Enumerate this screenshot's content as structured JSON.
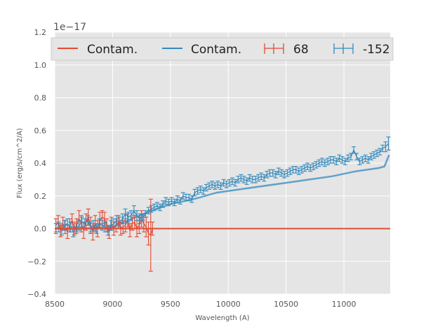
{
  "chart_data": {
    "type": "line",
    "title": "",
    "offset_text": "1e−17",
    "xlabel": "Wavelength (A)",
    "ylabel": "Flux (erg/s/cm^2/A)",
    "xlim": [
      8500,
      11400
    ],
    "ylim": [
      -0.4,
      1.2
    ],
    "xticks": [
      8500,
      9000,
      9500,
      10000,
      10500,
      11000
    ],
    "xtick_labels": [
      "8500",
      "9000",
      "9500",
      "10000",
      "10500",
      "11000"
    ],
    "yticks": [
      -0.4,
      -0.2,
      0.0,
      0.2,
      0.4,
      0.6,
      0.8,
      1.0,
      1.2
    ],
    "ytick_labels": [
      "−0.4",
      "−0.2",
      "0.0",
      "0.2",
      "0.4",
      "0.6",
      "0.8",
      "1.0",
      "1.2"
    ],
    "grid": true,
    "legend_position": "top",
    "legend": [
      {
        "label": "Contam.",
        "kind": "line",
        "color": "#e24a33"
      },
      {
        "label": "Contam.",
        "kind": "line",
        "color": "#348abd"
      },
      {
        "label": "68",
        "kind": "errorbar",
        "color": "#e24a33"
      },
      {
        "label": "-152",
        "kind": "errorbar",
        "color": "#348abd"
      }
    ],
    "series": [
      {
        "name": "Contam.",
        "kind": "line",
        "color": "#e24a33",
        "x": [
          8500,
          9330,
          11400
        ],
        "y": [
          0.0,
          0.0,
          0.0
        ]
      },
      {
        "name": "Contam.",
        "kind": "line",
        "color": "#348abd",
        "x": [
          8500,
          8700,
          9000,
          9300,
          9500,
          9700,
          9900,
          10100,
          10300,
          10500,
          10700,
          10900,
          11100,
          11300,
          11350,
          11390
        ],
        "y": [
          0.0,
          0.0,
          0.01,
          0.1,
          0.15,
          0.18,
          0.22,
          0.24,
          0.26,
          0.28,
          0.3,
          0.32,
          0.35,
          0.37,
          0.38,
          0.45
        ]
      },
      {
        "name": "68",
        "kind": "errorbar",
        "color": "#e24a33",
        "x": [
          8510,
          8530,
          8550,
          8570,
          8590,
          8610,
          8630,
          8650,
          8670,
          8690,
          8710,
          8730,
          8750,
          8770,
          8790,
          8810,
          8830,
          8850,
          8870,
          8890,
          8910,
          8930,
          8950,
          8970,
          8990,
          9010,
          9030,
          9050,
          9070,
          9090,
          9110,
          9130,
          9150,
          9170,
          9190,
          9210,
          9230,
          9250,
          9270,
          9290,
          9310,
          9330,
          9345
        ],
        "y": [
          0.02,
          0.04,
          -0.01,
          0.03,
          0.01,
          -0.02,
          0.02,
          0.05,
          0.0,
          0.02,
          0.06,
          0.03,
          -0.01,
          0.04,
          0.07,
          0.02,
          -0.02,
          0.03,
          0.0,
          0.05,
          0.07,
          0.06,
          0.02,
          -0.02,
          0.03,
          0.0,
          0.02,
          0.04,
          0.0,
          0.01,
          0.02,
          0.05,
          -0.01,
          0.03,
          0.04,
          0.0,
          0.02,
          0.06,
          0.03,
          0.01,
          -0.03,
          -0.04,
          0.0
        ],
        "err": [
          0.04,
          0.04,
          0.04,
          0.04,
          0.04,
          0.04,
          0.04,
          0.04,
          0.04,
          0.04,
          0.05,
          0.05,
          0.05,
          0.05,
          0.05,
          0.05,
          0.05,
          0.05,
          0.05,
          0.05,
          0.04,
          0.04,
          0.04,
          0.04,
          0.04,
          0.04,
          0.04,
          0.04,
          0.04,
          0.04,
          0.04,
          0.04,
          0.04,
          0.04,
          0.04,
          0.05,
          0.05,
          0.05,
          0.05,
          0.06,
          0.07,
          0.22,
          0.04
        ]
      },
      {
        "name": "-152",
        "kind": "errorbar",
        "color": "#348abd",
        "x": [
          8510,
          8535,
          8560,
          8585,
          8610,
          8635,
          8660,
          8685,
          8710,
          8735,
          8760,
          8785,
          8810,
          8835,
          8860,
          8885,
          8910,
          8935,
          8960,
          8985,
          9010,
          9035,
          9060,
          9085,
          9110,
          9135,
          9160,
          9185,
          9210,
          9235,
          9260,
          9285,
          9310,
          9335,
          9360,
          9385,
          9410,
          9435,
          9460,
          9485,
          9510,
          9535,
          9560,
          9585,
          9610,
          9635,
          9660,
          9685,
          9710,
          9735,
          9760,
          9785,
          9810,
          9835,
          9860,
          9885,
          9910,
          9935,
          9960,
          9985,
          10010,
          10035,
          10060,
          10085,
          10110,
          10135,
          10160,
          10185,
          10210,
          10235,
          10260,
          10285,
          10310,
          10335,
          10360,
          10385,
          10410,
          10435,
          10460,
          10485,
          10510,
          10535,
          10560,
          10585,
          10610,
          10635,
          10660,
          10685,
          10710,
          10735,
          10760,
          10785,
          10810,
          10835,
          10860,
          10885,
          10910,
          10935,
          10960,
          10985,
          11010,
          11035,
          11060,
          11085,
          11110,
          11135,
          11160,
          11185,
          11210,
          11235,
          11260,
          11285,
          11310,
          11335,
          11360,
          11385
        ],
        "y": [
          0.0,
          0.01,
          -0.01,
          0.02,
          0.03,
          0.01,
          -0.02,
          0.0,
          0.02,
          0.04,
          0.03,
          0.05,
          0.01,
          0.02,
          0.0,
          0.03,
          0.02,
          0.01,
          -0.01,
          0.02,
          0.03,
          0.05,
          0.04,
          0.06,
          0.09,
          0.07,
          0.08,
          0.11,
          0.08,
          0.06,
          0.07,
          0.09,
          0.11,
          0.12,
          0.13,
          0.14,
          0.13,
          0.15,
          0.17,
          0.16,
          0.17,
          0.16,
          0.18,
          0.17,
          0.2,
          0.19,
          0.19,
          0.18,
          0.22,
          0.23,
          0.24,
          0.23,
          0.25,
          0.26,
          0.27,
          0.26,
          0.27,
          0.26,
          0.28,
          0.27,
          0.28,
          0.29,
          0.28,
          0.3,
          0.31,
          0.3,
          0.29,
          0.31,
          0.3,
          0.3,
          0.31,
          0.32,
          0.31,
          0.33,
          0.34,
          0.34,
          0.33,
          0.35,
          0.34,
          0.33,
          0.34,
          0.35,
          0.36,
          0.36,
          0.35,
          0.36,
          0.37,
          0.38,
          0.37,
          0.38,
          0.39,
          0.4,
          0.41,
          0.4,
          0.41,
          0.42,
          0.42,
          0.41,
          0.43,
          0.42,
          0.41,
          0.43,
          0.44,
          0.48,
          0.44,
          0.41,
          0.42,
          0.43,
          0.42,
          0.44,
          0.45,
          0.46,
          0.47,
          0.49,
          0.5,
          0.52
        ],
        "err": [
          0.03,
          0.03,
          0.03,
          0.03,
          0.03,
          0.03,
          0.03,
          0.03,
          0.03,
          0.03,
          0.03,
          0.03,
          0.03,
          0.03,
          0.03,
          0.03,
          0.03,
          0.03,
          0.03,
          0.03,
          0.03,
          0.03,
          0.03,
          0.03,
          0.03,
          0.03,
          0.03,
          0.03,
          0.03,
          0.03,
          0.02,
          0.02,
          0.02,
          0.02,
          0.02,
          0.02,
          0.02,
          0.02,
          0.02,
          0.02,
          0.02,
          0.02,
          0.02,
          0.02,
          0.02,
          0.02,
          0.02,
          0.02,
          0.02,
          0.02,
          0.02,
          0.02,
          0.02,
          0.02,
          0.02,
          0.02,
          0.02,
          0.02,
          0.02,
          0.02,
          0.02,
          0.02,
          0.02,
          0.02,
          0.02,
          0.02,
          0.02,
          0.02,
          0.02,
          0.02,
          0.02,
          0.02,
          0.02,
          0.02,
          0.02,
          0.02,
          0.02,
          0.02,
          0.02,
          0.02,
          0.02,
          0.02,
          0.02,
          0.02,
          0.02,
          0.02,
          0.02,
          0.02,
          0.02,
          0.02,
          0.02,
          0.02,
          0.02,
          0.02,
          0.02,
          0.02,
          0.02,
          0.02,
          0.02,
          0.02,
          0.02,
          0.02,
          0.02,
          0.02,
          0.02,
          0.02,
          0.02,
          0.02,
          0.02,
          0.02,
          0.02,
          0.02,
          0.02,
          0.02,
          0.03,
          0.04
        ]
      }
    ]
  }
}
